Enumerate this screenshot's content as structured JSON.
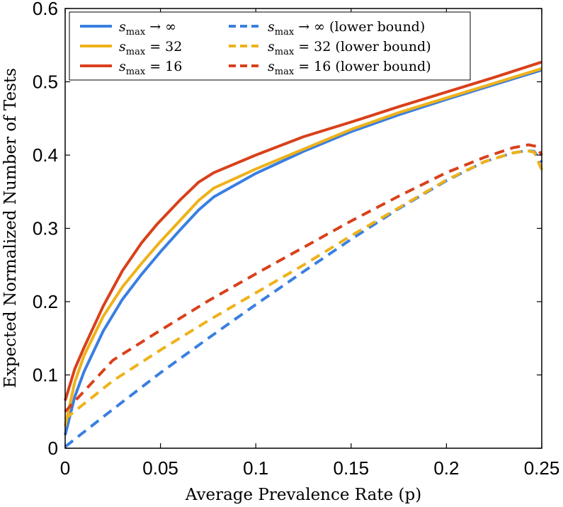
{
  "chart_data": {
    "type": "line",
    "title": "",
    "xlabel": "Average Prevalence Rate (p)",
    "ylabel": "Expected Normalized Number of Tests",
    "xlim": [
      0,
      0.25
    ],
    "ylim": [
      0,
      0.6
    ],
    "xticks": [
      0,
      0.05,
      0.1,
      0.15,
      0.2,
      0.25
    ],
    "xtick_labels": [
      "0",
      "0.05",
      "0.1",
      "0.15",
      "0.2",
      "0.25"
    ],
    "yticks": [
      0,
      0.1,
      0.2,
      0.3,
      0.4,
      0.5,
      0.6
    ],
    "ytick_labels": [
      "0",
      "0.1",
      "0.2",
      "0.3",
      "0.4",
      "0.5",
      "0.6"
    ],
    "grid": false,
    "legend_placement": "top-left",
    "colors": {
      "blue": "#3a7fe0",
      "yellow": "#eeb219",
      "red": "#d9401b",
      "axis": "#000000"
    },
    "series": [
      {
        "name": "s_max → ∞",
        "legend_var": "s",
        "legend_sub": "max",
        "legend_rest": " → ∞",
        "color": "#3a7fe0",
        "dashed": false,
        "x": [
          0,
          0.005,
          0.01,
          0.02,
          0.03,
          0.04,
          0.05,
          0.06,
          0.07,
          0.078,
          0.1,
          0.125,
          0.15,
          0.175,
          0.2,
          0.225,
          0.25
        ],
        "y": [
          0.018,
          0.07,
          0.105,
          0.16,
          0.203,
          0.237,
          0.268,
          0.297,
          0.325,
          0.343,
          0.375,
          0.405,
          0.432,
          0.455,
          0.476,
          0.496,
          0.516
        ]
      },
      {
        "name": "s_max = 32",
        "legend_var": "s",
        "legend_sub": "max",
        "legend_rest": " = 32",
        "color": "#eeb219",
        "dashed": false,
        "x": [
          0,
          0.005,
          0.01,
          0.02,
          0.03,
          0.04,
          0.05,
          0.06,
          0.07,
          0.078,
          0.1,
          0.125,
          0.15,
          0.175,
          0.2,
          0.225,
          0.25
        ],
        "y": [
          0.03,
          0.09,
          0.127,
          0.18,
          0.22,
          0.252,
          0.282,
          0.31,
          0.338,
          0.355,
          0.381,
          0.408,
          0.435,
          0.458,
          0.478,
          0.498,
          0.518
        ]
      },
      {
        "name": "s_max = 16",
        "legend_var": "s",
        "legend_sub": "max",
        "legend_rest": " = 16",
        "color": "#d9401b",
        "dashed": false,
        "x": [
          0,
          0.005,
          0.01,
          0.02,
          0.03,
          0.04,
          0.048,
          0.06,
          0.07,
          0.078,
          0.1,
          0.125,
          0.15,
          0.175,
          0.2,
          0.225,
          0.25
        ],
        "y": [
          0.065,
          0.108,
          0.138,
          0.194,
          0.242,
          0.28,
          0.305,
          0.338,
          0.363,
          0.376,
          0.4,
          0.425,
          0.445,
          0.466,
          0.486,
          0.506,
          0.527
        ]
      },
      {
        "name": "s_max → ∞ (lower bound)",
        "legend_var": "s",
        "legend_sub": "max",
        "legend_rest": " → ∞ (lower bound)",
        "color": "#3a7fe0",
        "dashed": true,
        "x": [
          0,
          0.025,
          0.05,
          0.075,
          0.1,
          0.125,
          0.15,
          0.175,
          0.2,
          0.22,
          0.235,
          0.242,
          0.246,
          0.25
        ],
        "y": [
          0.002,
          0.053,
          0.103,
          0.15,
          0.196,
          0.241,
          0.285,
          0.327,
          0.365,
          0.391,
          0.403,
          0.406,
          0.405,
          0.39
        ]
      },
      {
        "name": "s_max = 32 (lower bound)",
        "legend_var": "s",
        "legend_sub": "max",
        "legend_rest": " = 32 (lower bound)",
        "color": "#eeb219",
        "dashed": true,
        "x": [
          0,
          0.025,
          0.05,
          0.075,
          0.1,
          0.125,
          0.15,
          0.175,
          0.2,
          0.22,
          0.235,
          0.242,
          0.246,
          0.25
        ],
        "y": [
          0.04,
          0.092,
          0.134,
          0.174,
          0.212,
          0.25,
          0.29,
          0.328,
          0.366,
          0.391,
          0.403,
          0.406,
          0.404,
          0.38
        ]
      },
      {
        "name": "s_max = 16 (lower bound)",
        "legend_var": "s",
        "legend_sub": "max",
        "legend_rest": " = 16 (lower bound)",
        "color": "#d9401b",
        "dashed": true,
        "x": [
          0,
          0.025,
          0.05,
          0.075,
          0.1,
          0.125,
          0.15,
          0.175,
          0.2,
          0.22,
          0.235,
          0.243,
          0.247,
          0.25
        ],
        "y": [
          0.05,
          0.12,
          0.161,
          0.201,
          0.238,
          0.274,
          0.31,
          0.344,
          0.376,
          0.397,
          0.41,
          0.414,
          0.412,
          0.4
        ]
      }
    ]
  }
}
